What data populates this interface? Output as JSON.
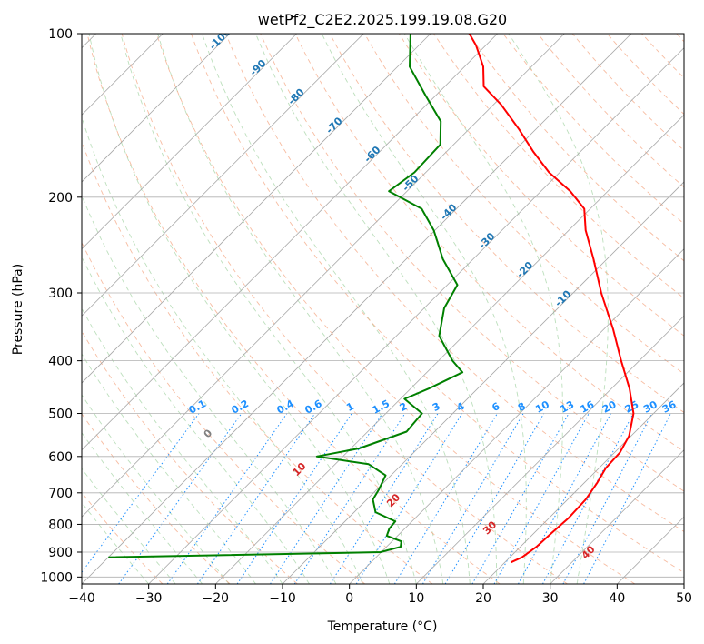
{
  "chart_data": {
    "type": "line",
    "subtype": "skew-t log-p diagram",
    "title": "wetPf2_C2E2.2025.199.19.08.G20",
    "xlabel": "Temperature (°C)",
    "ylabel": "Pressure (hPa)",
    "xlim": [
      -40,
      50
    ],
    "ylim": [
      1030,
      100
    ],
    "y_scale": "log",
    "grid": true,
    "x_ticks": [
      "−40",
      "−30",
      "−20",
      "−10",
      "0",
      "10",
      "20",
      "30",
      "40",
      "50"
    ],
    "y_ticks": [
      "100",
      "200",
      "300",
      "400",
      "500",
      "600",
      "700",
      "800",
      "900",
      "1000"
    ],
    "series": [
      {
        "role": "temperature",
        "color": "#ff0000",
        "points": [
          {
            "p": 940,
            "t": 20.9
          },
          {
            "p": 920,
            "t": 21.8
          },
          {
            "p": 880,
            "t": 22.4
          },
          {
            "p": 830,
            "t": 22.6
          },
          {
            "p": 780,
            "t": 22.9
          },
          {
            "p": 720,
            "t": 22.7
          },
          {
            "p": 670,
            "t": 21.9
          },
          {
            "p": 630,
            "t": 21.0
          },
          {
            "p": 590,
            "t": 20.8
          },
          {
            "p": 550,
            "t": 19.7
          },
          {
            "p": 500,
            "t": 17.0
          },
          {
            "p": 450,
            "t": 12.7
          },
          {
            "p": 400,
            "t": 7.3
          },
          {
            "p": 350,
            "t": 1.4
          },
          {
            "p": 300,
            "t": -5.8
          },
          {
            "p": 260,
            "t": -12.0
          },
          {
            "p": 230,
            "t": -17.5
          },
          {
            "p": 210,
            "t": -20.9
          },
          {
            "p": 195,
            "t": -25.6
          },
          {
            "p": 180,
            "t": -31.6
          },
          {
            "p": 165,
            "t": -37.0
          },
          {
            "p": 150,
            "t": -42.5
          },
          {
            "p": 135,
            "t": -48.9
          },
          {
            "p": 125,
            "t": -54.2
          },
          {
            "p": 115,
            "t": -57.2
          },
          {
            "p": 105,
            "t": -61.5
          },
          {
            "p": 100,
            "t": -64.2
          }
        ]
      },
      {
        "role": "dewpoint",
        "color": "#008000",
        "points": [
          {
            "p": 920,
            "t": -40.0
          },
          {
            "p": 900,
            "t": -0.1
          },
          {
            "p": 880,
            "t": 2.1
          },
          {
            "p": 860,
            "t": 1.4
          },
          {
            "p": 840,
            "t": -1.6
          },
          {
            "p": 815,
            "t": -2.3
          },
          {
            "p": 790,
            "t": -2.5
          },
          {
            "p": 760,
            "t": -6.8
          },
          {
            "p": 720,
            "t": -9.1
          },
          {
            "p": 690,
            "t": -9.7
          },
          {
            "p": 650,
            "t": -10.8
          },
          {
            "p": 620,
            "t": -15.0
          },
          {
            "p": 600,
            "t": -23.9
          },
          {
            "p": 580,
            "t": -18.8
          },
          {
            "p": 540,
            "t": -14.2
          },
          {
            "p": 500,
            "t": -14.6
          },
          {
            "p": 470,
            "t": -19.4
          },
          {
            "p": 450,
            "t": -17.3
          },
          {
            "p": 420,
            "t": -14.7
          },
          {
            "p": 400,
            "t": -17.9
          },
          {
            "p": 360,
            "t": -23.6
          },
          {
            "p": 320,
            "t": -27.0
          },
          {
            "p": 290,
            "t": -28.5
          },
          {
            "p": 260,
            "t": -34.5
          },
          {
            "p": 230,
            "t": -40.2
          },
          {
            "p": 210,
            "t": -45.2
          },
          {
            "p": 195,
            "t": -52.7
          },
          {
            "p": 180,
            "t": -51.7
          },
          {
            "p": 160,
            "t": -52.0
          },
          {
            "p": 145,
            "t": -55.4
          },
          {
            "p": 130,
            "t": -61.5
          },
          {
            "p": 115,
            "t": -68.2
          },
          {
            "p": 100,
            "t": -73.0
          }
        ]
      }
    ],
    "isotherm_labels": [
      "-100",
      "-90",
      "-80",
      "-70",
      "-60",
      "-50",
      "-40",
      "-30",
      "-20",
      "-10"
    ],
    "mixing_ratio_labels": [
      "0.1",
      "0.2",
      "0.4",
      "0.6",
      "1",
      "1.5",
      "2",
      "3",
      "4",
      "6",
      "8",
      "10",
      "13",
      "16",
      "20",
      "25",
      "30",
      "36"
    ],
    "dry_adiabat_labels": [
      "0",
      "10",
      "20",
      "30",
      "40"
    ],
    "colors": {
      "isotherm_label": "#1f77b4",
      "mixing_ratio": "#1e90ff",
      "dry_adiabat": "#d62728",
      "theta_zero": "#808080",
      "gridline": "#b0b0b0"
    }
  }
}
